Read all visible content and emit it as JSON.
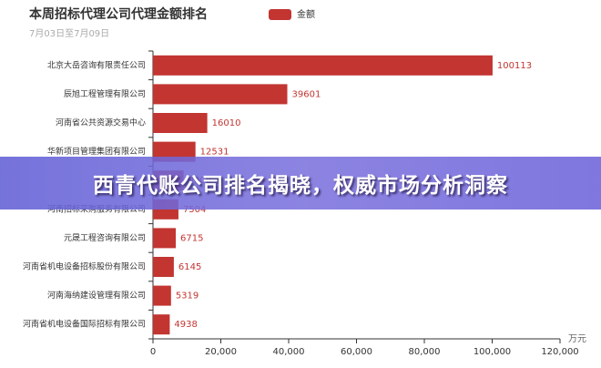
{
  "chart_data": {
    "type": "hbar",
    "title": "本周招标代理公司代理金额排名",
    "subtitle": "7月03日至7月09日",
    "x_label": "万元",
    "categories": [
      "北京大岳咨询有限责任公司",
      "辰旭工程管理有限公司",
      "河南省公共资源交易中心",
      "华新项目管理集团有限公司",
      null,
      "河南招标采购服务有限公司",
      "元晟工程咨询有限公司",
      "河南省机电设备招标股份有限公司",
      "河南海纳建设管理有限公司",
      "河南省机电设备国际招标有限公司"
    ],
    "series": [
      {
        "name": "金额",
        "color": "#c23531",
        "values": [
          100113,
          39601,
          16010,
          12531,
          9000,
          7504,
          6715,
          6145,
          5319,
          4938
        ]
      }
    ],
    "xlim": [
      0,
      120000
    ],
    "xticks": [
      0,
      {
        "value": 20000,
        "label": "20,000"
      },
      {
        "value": 40000,
        "label": "40,000"
      },
      {
        "value": 60000,
        "label": "60,000"
      },
      {
        "value": 80000,
        "label": "80,000"
      },
      {
        "value": 100000,
        "label": "100,000"
      },
      {
        "value": 120000,
        "label": "120,000"
      }
    ]
  },
  "banner": "西青代账公司排名揭晓，权威市场分析洞察"
}
